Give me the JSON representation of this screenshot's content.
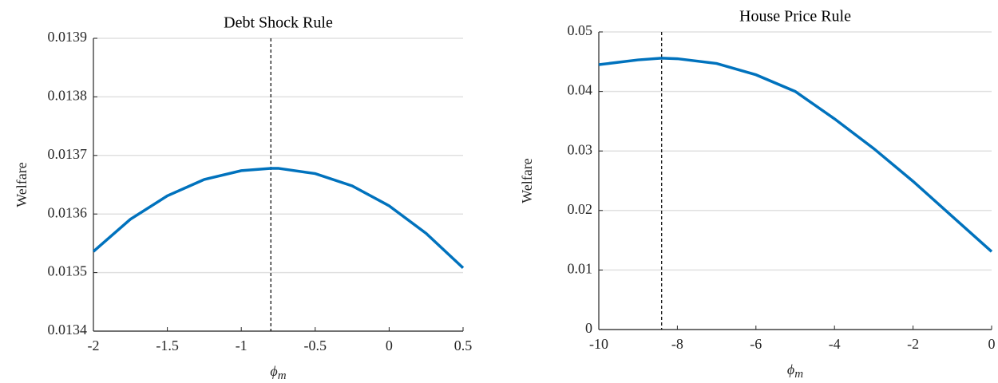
{
  "chart_data": [
    {
      "type": "line",
      "title": "Debt Shock Rule",
      "x_label": "ϕ",
      "x_label_sub": "m",
      "y_label": "Welfare",
      "x": [
        -2,
        -1.75,
        -1.5,
        -1.25,
        -1,
        -0.8,
        -0.75,
        -0.5,
        -0.25,
        0,
        0.25,
        0.5
      ],
      "series": [
        {
          "color": "#0072bd",
          "values": [
            0.013536,
            0.013591,
            0.013631,
            0.013659,
            0.013674,
            0.013678,
            0.013678,
            0.013669,
            0.013648,
            0.013614,
            0.013567,
            0.013508
          ]
        }
      ],
      "vline": -0.8,
      "xlim": [
        -2,
        0.5
      ],
      "xticks": [
        -2,
        -1.5,
        -1,
        -0.5,
        0,
        0.5
      ],
      "ylim": [
        0.0134,
        0.0139
      ],
      "yticks": [
        0.0134,
        0.0135,
        0.0136,
        0.0137,
        0.0138,
        0.0139
      ],
      "grid": true
    },
    {
      "type": "line",
      "title": "House Price Rule",
      "x_label": "ϕ",
      "x_label_sub": "m",
      "y_label": "Welfare",
      "x": [
        -10,
        -9,
        -8.4,
        -8,
        -7,
        -6,
        -5,
        -4,
        -3,
        -2,
        -1,
        0
      ],
      "series": [
        {
          "color": "#0072bd",
          "values": [
            0.0445,
            0.0453,
            0.0456,
            0.0455,
            0.0447,
            0.0428,
            0.04,
            0.0354,
            0.0304,
            0.0249,
            0.019,
            0.0131
          ]
        }
      ],
      "vline": -8.4,
      "xlim": [
        -10,
        0
      ],
      "xticks": [
        -10,
        -8,
        -6,
        -4,
        -2,
        0
      ],
      "ylim": [
        0,
        0.05
      ],
      "yticks": [
        0,
        0.01,
        0.02,
        0.03,
        0.04,
        0.05
      ],
      "grid": true
    }
  ]
}
